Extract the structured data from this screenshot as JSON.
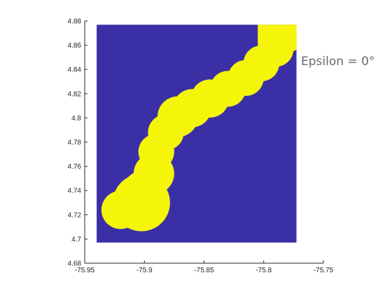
{
  "chart_data": {
    "type": "heatmap",
    "title": "",
    "xlabel": "",
    "ylabel": "",
    "xlim": [
      -75.95,
      -75.75
    ],
    "ylim": [
      4.68,
      4.88
    ],
    "grid": false,
    "x_ticks": [
      -75.95,
      -75.9,
      -75.85,
      -75.8,
      -75.75
    ],
    "x_tick_labels": [
      "-75.95",
      "-75.9",
      "-75.85",
      "-75.8",
      "-75.75"
    ],
    "y_ticks": [
      4.68,
      4.7,
      4.72,
      4.74,
      4.76,
      4.78,
      4.8,
      4.82,
      4.84,
      4.86,
      4.88
    ],
    "y_tick_labels": [
      "4.68",
      "4.7",
      "4.72",
      "4.74",
      "4.76",
      "4.78",
      "4.8",
      "4.82",
      "4.84",
      "4.86",
      "4.88"
    ],
    "image_extent": {
      "x": [
        -75.94,
        -75.7725
      ],
      "y": [
        4.697,
        4.877
      ]
    },
    "colors": {
      "background_value": "#3b2fa6",
      "mask_value": "#f5f50a",
      "axis": "#262626"
    },
    "values_legend": {
      "background": 0,
      "mask": 1
    },
    "mask_shape": "union of discs along a path",
    "mask_discs": [
      {
        "x": -75.9025,
        "y": 4.73,
        "r": 0.024
      },
      {
        "x": -75.92,
        "y": 4.724,
        "r": 0.016
      },
      {
        "x": -75.9,
        "y": 4.738,
        "r": 0.019
      },
      {
        "x": -75.892,
        "y": 4.754,
        "r": 0.017
      },
      {
        "x": -75.89,
        "y": 4.772,
        "r": 0.015
      },
      {
        "x": -75.882,
        "y": 4.788,
        "r": 0.015
      },
      {
        "x": -75.872,
        "y": 4.801,
        "r": 0.017
      },
      {
        "x": -75.86,
        "y": 4.808,
        "r": 0.016
      },
      {
        "x": -75.845,
        "y": 4.816,
        "r": 0.016
      },
      {
        "x": -75.83,
        "y": 4.824,
        "r": 0.015
      },
      {
        "x": -75.815,
        "y": 4.833,
        "r": 0.015
      },
      {
        "x": -75.802,
        "y": 4.845,
        "r": 0.015
      },
      {
        "x": -75.79,
        "y": 4.857,
        "r": 0.015
      },
      {
        "x": -75.78,
        "y": 4.868,
        "r": 0.014
      }
    ],
    "mask_rects": [
      {
        "x": [
          -75.805,
          -75.7725
        ],
        "y": [
          4.858,
          4.877
        ]
      }
    ]
  },
  "annotation": {
    "text": "Epsilon = 0°"
  }
}
